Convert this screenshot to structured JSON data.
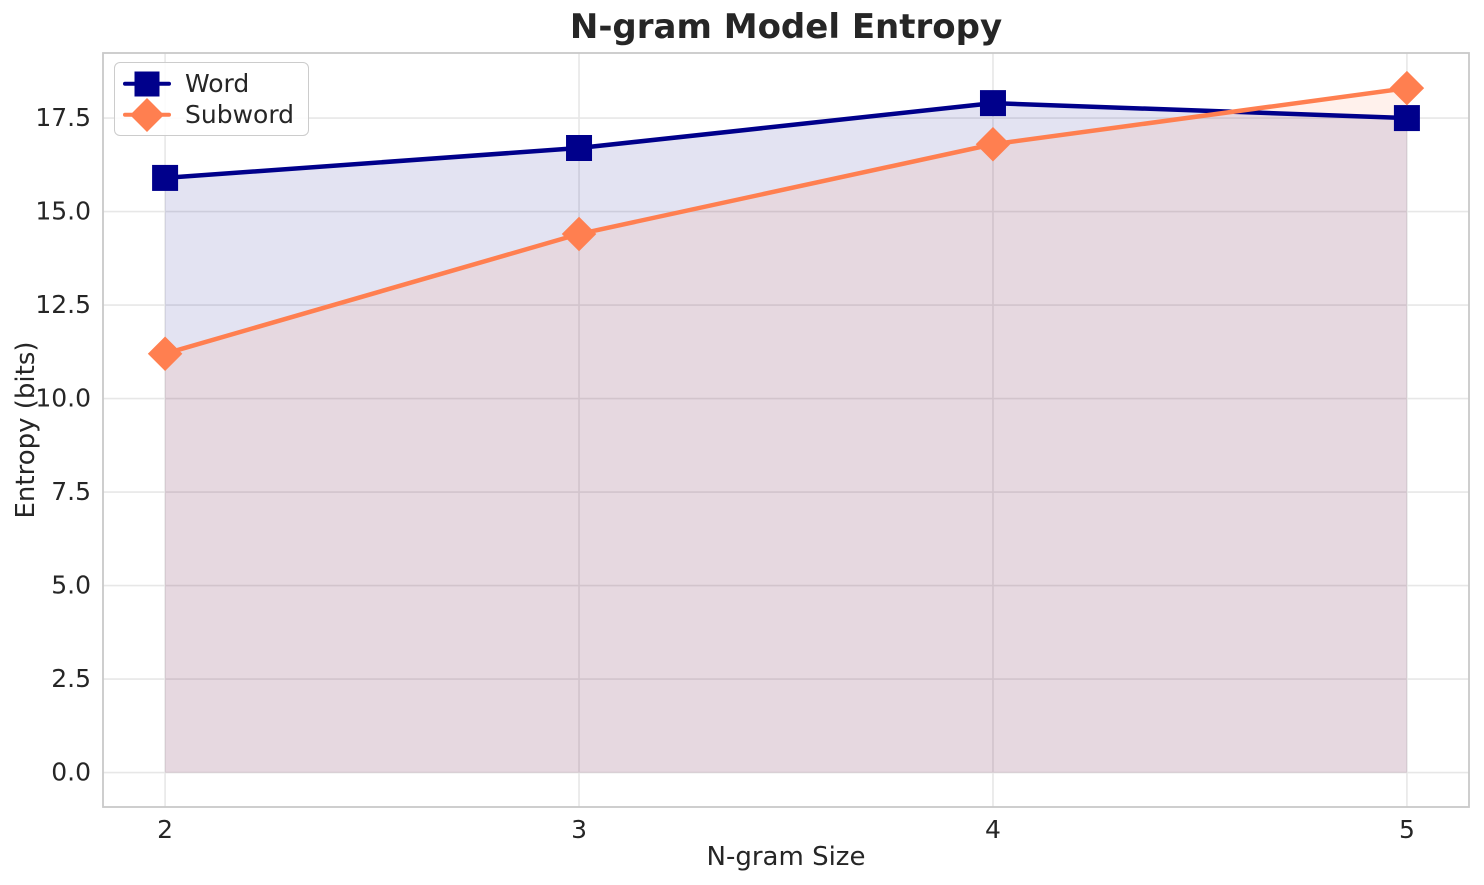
{
  "chart_data": {
    "type": "line",
    "title": "N-gram Model Entropy",
    "xlabel": "N-gram Size",
    "ylabel": "Entropy (bits)",
    "x": [
      2,
      3,
      4,
      5
    ],
    "xtick_labels": [
      "2",
      "3",
      "4",
      "5"
    ],
    "yticks": [
      0,
      2.5,
      5,
      7.5,
      10,
      12.5,
      15,
      17.5
    ],
    "ytick_labels": [
      "0.0",
      "2.5",
      "5.0",
      "7.5",
      "10.0",
      "12.5",
      "15.0",
      "17.5"
    ],
    "xlim": [
      1.85,
      5.15
    ],
    "ylim": [
      -0.92,
      19.24
    ],
    "grid": true,
    "legend_position": "upper left",
    "fill_to_baseline": 0,
    "series": [
      {
        "name": "Word",
        "marker": "square",
        "color": "#00008B",
        "fill_alpha": 0.11,
        "values": [
          15.9,
          16.7,
          17.9,
          17.5
        ]
      },
      {
        "name": "Subword",
        "marker": "diamond",
        "color": "#FF7F50",
        "fill_alpha": 0.11,
        "values": [
          11.2,
          14.4,
          16.8,
          18.3
        ]
      }
    ],
    "colors": {
      "text": "#262626",
      "grid": "#e7e7e7",
      "spine": "#c9c9c9",
      "background": "#ffffff"
    }
  }
}
